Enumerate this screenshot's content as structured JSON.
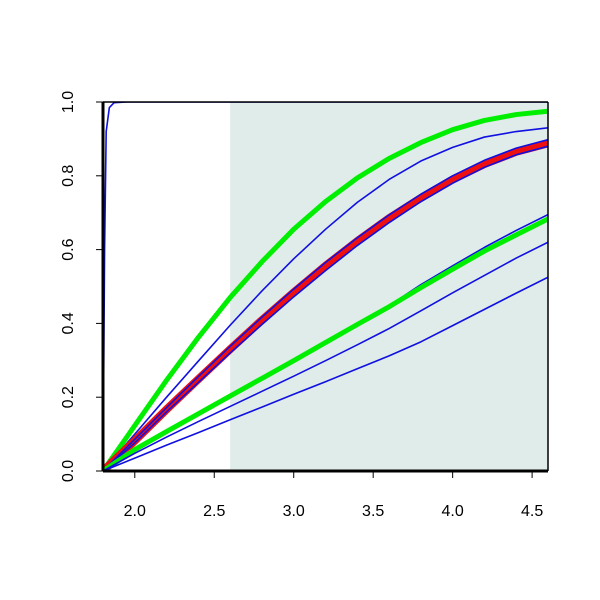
{
  "chart_data": {
    "type": "line",
    "title": "",
    "xlabel": "",
    "ylabel": "",
    "xlim": [
      1.8,
      4.6
    ],
    "ylim": [
      0.0,
      1.0
    ],
    "x_ticks": [
      "2.0",
      "2.5",
      "3.0",
      "3.5",
      "4.0",
      "4.5"
    ],
    "y_ticks": [
      "0.0",
      "0.2",
      "0.4",
      "0.6",
      "0.8",
      "1.0"
    ],
    "grid": false,
    "shaded_region": {
      "x_from": 2.6,
      "x_to": 4.6,
      "color": "#dfecea"
    },
    "colors": {
      "blue": "#1010e0",
      "green": "#00ee00",
      "red": "#ee1010",
      "axis": "#000000"
    },
    "series": [
      {
        "color": "blue",
        "width": 1.6,
        "points": [
          [
            1.8,
            0.0
          ],
          [
            1.81,
            0.6
          ],
          [
            1.82,
            0.92
          ],
          [
            1.84,
            0.985
          ],
          [
            1.87,
            0.998
          ],
          [
            1.95,
            1.0
          ],
          [
            4.6,
            1.0
          ]
        ]
      },
      {
        "color": "green",
        "width": 5,
        "points": [
          [
            1.8,
            0.0
          ],
          [
            2.0,
            0.123
          ],
          [
            2.2,
            0.246
          ],
          [
            2.4,
            0.362
          ],
          [
            2.6,
            0.47
          ],
          [
            2.8,
            0.567
          ],
          [
            3.0,
            0.655
          ],
          [
            3.2,
            0.73
          ],
          [
            3.4,
            0.794
          ],
          [
            3.6,
            0.847
          ],
          [
            3.8,
            0.89
          ],
          [
            4.0,
            0.925
          ],
          [
            4.2,
            0.95
          ],
          [
            4.4,
            0.966
          ],
          [
            4.6,
            0.975
          ]
        ]
      },
      {
        "color": "blue",
        "width": 1.6,
        "points": [
          [
            1.8,
            0.0
          ],
          [
            2.0,
            0.1
          ],
          [
            2.2,
            0.2
          ],
          [
            2.4,
            0.298
          ],
          [
            2.6,
            0.395
          ],
          [
            2.8,
            0.488
          ],
          [
            3.0,
            0.575
          ],
          [
            3.2,
            0.655
          ],
          [
            3.4,
            0.728
          ],
          [
            3.6,
            0.79
          ],
          [
            3.8,
            0.84
          ],
          [
            4.0,
            0.877
          ],
          [
            4.2,
            0.905
          ],
          [
            4.4,
            0.92
          ],
          [
            4.6,
            0.93
          ]
        ]
      },
      {
        "color": "red",
        "width": 8,
        "points": [
          [
            1.8,
            0.0
          ],
          [
            2.0,
            0.082
          ],
          [
            2.2,
            0.167
          ],
          [
            2.4,
            0.249
          ],
          [
            2.6,
            0.33
          ],
          [
            2.8,
            0.409
          ],
          [
            3.0,
            0.484
          ],
          [
            3.2,
            0.556
          ],
          [
            3.4,
            0.623
          ],
          [
            3.6,
            0.685
          ],
          [
            3.8,
            0.74
          ],
          [
            4.0,
            0.79
          ],
          [
            4.2,
            0.832
          ],
          [
            4.4,
            0.865
          ],
          [
            4.6,
            0.888
          ]
        ]
      },
      {
        "color": "blue",
        "width": 1.6,
        "points": [
          [
            1.8,
            0.0
          ],
          [
            2.0,
            0.086
          ],
          [
            2.2,
            0.172
          ],
          [
            2.4,
            0.256
          ],
          [
            2.6,
            0.338
          ],
          [
            2.8,
            0.417
          ],
          [
            3.0,
            0.493
          ],
          [
            3.2,
            0.565
          ],
          [
            3.4,
            0.632
          ],
          [
            3.6,
            0.694
          ],
          [
            3.8,
            0.75
          ],
          [
            4.0,
            0.8
          ],
          [
            4.2,
            0.842
          ],
          [
            4.4,
            0.875
          ],
          [
            4.6,
            0.898
          ]
        ]
      },
      {
        "color": "blue",
        "width": 1.6,
        "points": [
          [
            1.8,
            0.0
          ],
          [
            2.0,
            0.076
          ],
          [
            2.2,
            0.16
          ],
          [
            2.4,
            0.24
          ],
          [
            2.6,
            0.32
          ],
          [
            2.8,
            0.397
          ],
          [
            3.0,
            0.472
          ],
          [
            3.2,
            0.543
          ],
          [
            3.4,
            0.611
          ],
          [
            3.6,
            0.673
          ],
          [
            3.8,
            0.73
          ],
          [
            4.0,
            0.78
          ],
          [
            4.2,
            0.823
          ],
          [
            4.4,
            0.857
          ],
          [
            4.6,
            0.88
          ]
        ]
      },
      {
        "color": "blue",
        "width": 1.6,
        "points": [
          [
            1.8,
            0.0
          ],
          [
            2.0,
            0.06
          ],
          [
            2.2,
            0.11
          ],
          [
            2.4,
            0.158
          ],
          [
            2.6,
            0.207
          ],
          [
            2.8,
            0.255
          ],
          [
            3.0,
            0.303
          ],
          [
            3.2,
            0.352
          ],
          [
            3.4,
            0.4
          ],
          [
            3.6,
            0.448
          ],
          [
            3.8,
            0.505
          ],
          [
            4.0,
            0.556
          ],
          [
            4.2,
            0.606
          ],
          [
            4.4,
            0.652
          ],
          [
            4.6,
            0.695
          ]
        ]
      },
      {
        "color": "green",
        "width": 5,
        "points": [
          [
            1.8,
            0.0
          ],
          [
            2.0,
            0.058
          ],
          [
            2.2,
            0.107
          ],
          [
            2.4,
            0.155
          ],
          [
            2.6,
            0.203
          ],
          [
            2.8,
            0.251
          ],
          [
            3.0,
            0.299
          ],
          [
            3.2,
            0.348
          ],
          [
            3.4,
            0.397
          ],
          [
            3.6,
            0.445
          ],
          [
            3.8,
            0.497
          ],
          [
            4.0,
            0.547
          ],
          [
            4.2,
            0.596
          ],
          [
            4.4,
            0.64
          ],
          [
            4.6,
            0.683
          ]
        ]
      },
      {
        "color": "blue",
        "width": 1.6,
        "points": [
          [
            1.8,
            0.0
          ],
          [
            2.0,
            0.048
          ],
          [
            2.2,
            0.092
          ],
          [
            2.4,
            0.134
          ],
          [
            2.6,
            0.175
          ],
          [
            2.8,
            0.216
          ],
          [
            3.0,
            0.257
          ],
          [
            3.2,
            0.299
          ],
          [
            3.4,
            0.342
          ],
          [
            3.6,
            0.386
          ],
          [
            3.8,
            0.434
          ],
          [
            4.0,
            0.483
          ],
          [
            4.2,
            0.53
          ],
          [
            4.4,
            0.577
          ],
          [
            4.6,
            0.62
          ]
        ]
      },
      {
        "color": "blue",
        "width": 1.6,
        "points": [
          [
            1.8,
            0.0
          ],
          [
            2.0,
            0.035
          ],
          [
            2.2,
            0.07
          ],
          [
            2.4,
            0.104
          ],
          [
            2.6,
            0.139
          ],
          [
            2.8,
            0.173
          ],
          [
            3.0,
            0.208
          ],
          [
            3.2,
            0.242
          ],
          [
            3.4,
            0.277
          ],
          [
            3.6,
            0.312
          ],
          [
            3.8,
            0.35
          ],
          [
            4.0,
            0.394
          ],
          [
            4.2,
            0.438
          ],
          [
            4.4,
            0.482
          ],
          [
            4.6,
            0.525
          ]
        ]
      }
    ]
  }
}
